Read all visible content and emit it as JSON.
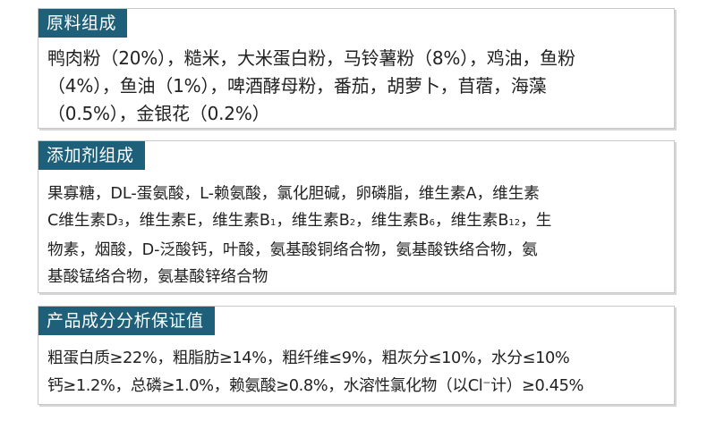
{
  "ingredients": {
    "title": "原料组成",
    "lines": [
      "鸭肉粉（20%），糙米，大米蛋白粉，马铃薯粉（8%），鸡油，鱼粉",
      "（4%），鱼油（1%），啤酒酵母粉，番茄，胡萝卜，苜蓿，海藻",
      "（0.5%），金银花（0.2%）"
    ]
  },
  "additives": {
    "title": "添加剂组成",
    "line1": "果寡糖，DL-蛋氨酸，L-赖氨酸，氯化胆碱，卵磷脂，维生素A，维生素",
    "line2_parts": [
      "C维生素D",
      "3",
      "，维生素E，维生素B",
      "1",
      "，维生素B",
      "2",
      "，维生素B",
      "6",
      "，维生素B",
      "12",
      "，生"
    ],
    "line3": "物素，烟酸，D-泛酸钙，叶酸，氨基酸铜络合物，氨基酸铁络合物，氨",
    "line4": "基酸锰络合物，氨基酸锌络合物"
  },
  "analysis": {
    "title": "产品成分分析保证值",
    "lines": [
      "粗蛋白质≥22%，粗脂肪≥14%，粗纤维≤9%，粗灰分≤10%，水分≤10%",
      "钙≥1.2%，总磷≥1.0%，赖氨酸≥0.8%，水溶性氯化物（以Cl⁻计）≥0.45%"
    ]
  }
}
